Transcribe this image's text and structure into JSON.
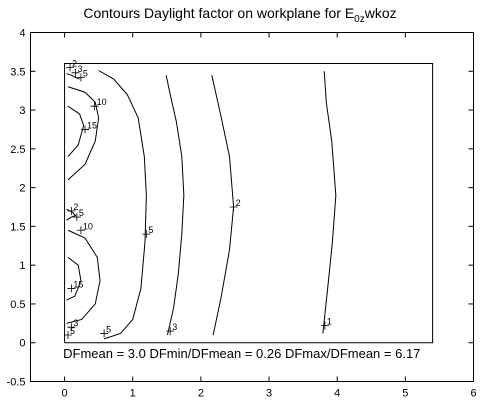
{
  "chart_data": {
    "type": "contour",
    "title": "Contours Daylight factor on workplane  for E",
    "title_subscript": "0z",
    "title_suffix": "wkoz",
    "xlim": [
      -0.5,
      6
    ],
    "ylim": [
      -0.5,
      4
    ],
    "xticks": [
      0,
      1,
      2,
      3,
      4,
      5,
      6
    ],
    "yticks": [
      -0.5,
      0,
      0.5,
      1,
      1.5,
      2,
      2.5,
      3,
      3.5,
      4
    ],
    "room_outline": [
      [
        0,
        0
      ],
      [
        5.4,
        0
      ],
      [
        5.4,
        3.6
      ],
      [
        0,
        3.6
      ],
      [
        0,
        0
      ]
    ],
    "contours": [
      {
        "level": "1",
        "points": [
          [
            3.79,
            0.12
          ],
          [
            3.86,
            0.7
          ],
          [
            3.93,
            1.3
          ],
          [
            3.98,
            1.9
          ],
          [
            3.92,
            2.6
          ],
          [
            3.84,
            3.1
          ],
          [
            3.81,
            3.5
          ]
        ]
      },
      {
        "level": "2",
        "points": [
          [
            2.18,
            0.1
          ],
          [
            2.3,
            0.6
          ],
          [
            2.42,
            1.2
          ],
          [
            2.48,
            1.75
          ],
          [
            2.42,
            2.4
          ],
          [
            2.3,
            2.9
          ],
          [
            2.16,
            3.45
          ]
        ]
      },
      {
        "level": "3",
        "points": [
          [
            1.51,
            0.1
          ],
          [
            1.6,
            0.45
          ],
          [
            1.67,
            0.9
          ],
          [
            1.72,
            1.4
          ],
          [
            1.75,
            1.9
          ],
          [
            1.72,
            2.4
          ],
          [
            1.64,
            2.85
          ],
          [
            1.55,
            3.2
          ],
          [
            1.49,
            3.45
          ]
        ]
      },
      {
        "level": "5",
        "points": [
          [
            0.58,
            0.05
          ],
          [
            0.82,
            0.12
          ],
          [
            1.0,
            0.3
          ],
          [
            1.12,
            0.7
          ],
          [
            1.18,
            1.3
          ],
          [
            1.2,
            1.9
          ],
          [
            1.17,
            2.4
          ],
          [
            1.08,
            2.9
          ],
          [
            0.92,
            3.2
          ],
          [
            0.72,
            3.4
          ],
          [
            0.5,
            3.51
          ]
        ]
      },
      {
        "level": "10",
        "points": [
          [
            0.03,
            0.25
          ],
          [
            0.25,
            0.3
          ],
          [
            0.45,
            0.5
          ],
          [
            0.52,
            0.8
          ],
          [
            0.48,
            1.1
          ],
          [
            0.3,
            1.35
          ],
          [
            0.05,
            1.45
          ]
        ]
      },
      {
        "level": "10",
        "points": [
          [
            0.05,
            2.1
          ],
          [
            0.3,
            2.3
          ],
          [
            0.45,
            2.6
          ],
          [
            0.5,
            2.9
          ],
          [
            0.45,
            3.1
          ],
          [
            0.3,
            3.23
          ],
          [
            0.05,
            3.3
          ]
        ]
      },
      {
        "level": "15",
        "points": [
          [
            0.03,
            0.55
          ],
          [
            0.15,
            0.6
          ],
          [
            0.24,
            0.8
          ],
          [
            0.2,
            1.0
          ],
          [
            0.05,
            1.1
          ]
        ]
      },
      {
        "level": "15",
        "points": [
          [
            0.05,
            2.4
          ],
          [
            0.2,
            2.55
          ],
          [
            0.28,
            2.8
          ],
          [
            0.22,
            2.95
          ],
          [
            0.05,
            3.05
          ]
        ]
      },
      {
        "level": "5",
        "points": [
          [
            0.03,
            1.58
          ],
          [
            0.1,
            1.62
          ],
          [
            0.16,
            1.64
          ],
          [
            0.12,
            1.68
          ],
          [
            0.03,
            1.72
          ]
        ]
      },
      {
        "level": "5",
        "points": [
          [
            0.03,
            3.47
          ],
          [
            0.1,
            3.45
          ],
          [
            0.16,
            3.42
          ],
          [
            0.22,
            3.4
          ]
        ]
      }
    ],
    "contour_labels": [
      {
        "text": "1",
        "x": 3.82,
        "y": 0.22
      },
      {
        "text": "2",
        "x": 2.48,
        "y": 1.75
      },
      {
        "text": "3",
        "x": 1.55,
        "y": 0.15
      },
      {
        "text": "5",
        "x": 1.2,
        "y": 1.4
      },
      {
        "text": "5",
        "x": 0.58,
        "y": 0.12
      },
      {
        "text": "10",
        "x": 0.44,
        "y": 3.05
      },
      {
        "text": "10",
        "x": 0.24,
        "y": 1.45
      },
      {
        "text": "15",
        "x": 0.3,
        "y": 2.75
      },
      {
        "text": "15",
        "x": 0.1,
        "y": 0.7
      },
      {
        "text": "3",
        "x": 0.1,
        "y": 0.2
      },
      {
        "text": "5",
        "x": 0.05,
        "y": 0.1
      },
      {
        "text": "2",
        "x": 0.08,
        "y": 3.55
      },
      {
        "text": "3",
        "x": 0.16,
        "y": 3.48
      },
      {
        "text": "5",
        "x": 0.24,
        "y": 3.42
      },
      {
        "text": "2",
        "x": 0.1,
        "y": 1.7
      },
      {
        "text": "5",
        "x": 0.18,
        "y": 1.62
      }
    ],
    "stats": {
      "text": "DFmean =  3.0   DFmin/DFmean = 0.26   DFmax/DFmean =  6.17",
      "x": 2.6,
      "y": -0.2
    },
    "grid": false
  }
}
